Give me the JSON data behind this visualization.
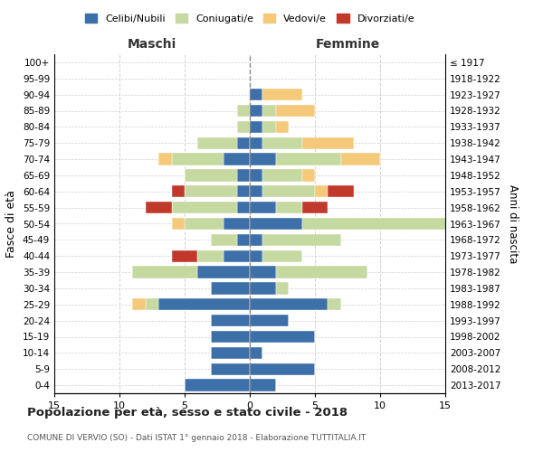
{
  "age_groups": [
    "100+",
    "95-99",
    "90-94",
    "85-89",
    "80-84",
    "75-79",
    "70-74",
    "65-69",
    "60-64",
    "55-59",
    "50-54",
    "45-49",
    "40-44",
    "35-39",
    "30-34",
    "25-29",
    "20-24",
    "15-19",
    "10-14",
    "5-9",
    "0-4"
  ],
  "birth_years": [
    "≤ 1917",
    "1918-1922",
    "1923-1927",
    "1928-1932",
    "1933-1937",
    "1938-1942",
    "1943-1947",
    "1948-1952",
    "1953-1957",
    "1958-1962",
    "1963-1967",
    "1968-1972",
    "1973-1977",
    "1978-1982",
    "1983-1987",
    "1988-1992",
    "1993-1997",
    "1998-2002",
    "2003-2007",
    "2008-2012",
    "2013-2017"
  ],
  "colors": {
    "celibi": "#3d6fa8",
    "coniugati": "#c5d9a0",
    "vedovi": "#f5c97a",
    "divorziati": "#c0392b"
  },
  "maschi": {
    "celibi": [
      0,
      0,
      0,
      0,
      0,
      1,
      2,
      1,
      1,
      1,
      2,
      1,
      2,
      4,
      3,
      7,
      3,
      3,
      3,
      3,
      5
    ],
    "coniugati": [
      0,
      0,
      0,
      1,
      1,
      3,
      4,
      4,
      4,
      5,
      3,
      2,
      2,
      5,
      0,
      1,
      0,
      0,
      0,
      0,
      0
    ],
    "vedovi": [
      0,
      0,
      0,
      0,
      0,
      0,
      1,
      0,
      0,
      0,
      1,
      0,
      0,
      0,
      0,
      1,
      0,
      0,
      0,
      0,
      0
    ],
    "divorziati": [
      0,
      0,
      0,
      0,
      0,
      0,
      0,
      0,
      1,
      2,
      0,
      0,
      2,
      0,
      0,
      0,
      0,
      0,
      0,
      0,
      0
    ]
  },
  "femmine": {
    "celibi": [
      0,
      0,
      1,
      1,
      1,
      1,
      2,
      1,
      1,
      2,
      4,
      1,
      1,
      2,
      2,
      6,
      3,
      5,
      1,
      5,
      2
    ],
    "coniugati": [
      0,
      0,
      0,
      1,
      1,
      3,
      5,
      3,
      4,
      2,
      13,
      6,
      3,
      7,
      1,
      1,
      0,
      0,
      0,
      0,
      0
    ],
    "vedovi": [
      0,
      0,
      3,
      3,
      1,
      4,
      3,
      1,
      1,
      0,
      0,
      0,
      0,
      0,
      0,
      0,
      0,
      0,
      0,
      0,
      0
    ],
    "divorziati": [
      0,
      0,
      0,
      0,
      0,
      0,
      0,
      0,
      2,
      2,
      0,
      0,
      0,
      0,
      0,
      0,
      0,
      0,
      0,
      0,
      0
    ]
  },
  "title": "Popolazione per età, sesso e stato civile - 2018",
  "subtitle": "COMUNE DI VERVIO (SO) - Dati ISTAT 1° gennaio 2018 - Elaborazione TUTTITALIA.IT",
  "xlabel_left": "Maschi",
  "xlabel_right": "Femmine",
  "ylabel_left": "Fasce di età",
  "ylabel_right": "Anni di nascita",
  "xlim": 15,
  "legend_labels": [
    "Celibi/Nubili",
    "Coniugati/e",
    "Vedovi/e",
    "Divorziati/e"
  ],
  "bg_color": "#ffffff",
  "grid_color": "#cccccc"
}
